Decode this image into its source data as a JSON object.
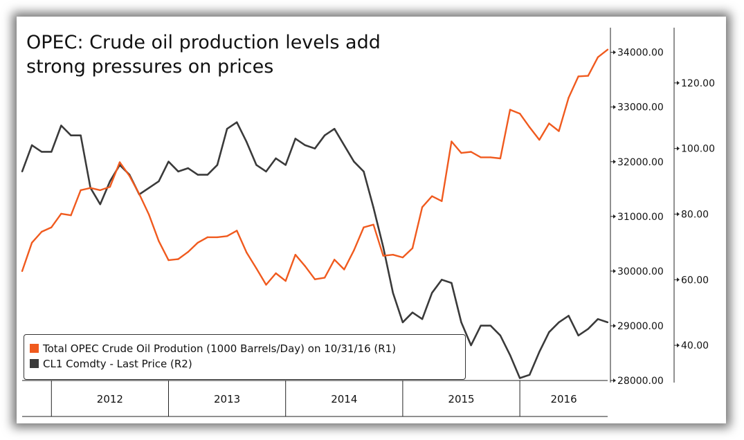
{
  "title_lines": [
    "OPEC: Crude oil production levels add",
    "strong pressures on prices"
  ],
  "colors": {
    "opec": "#f05a1e",
    "cl1": "#3a3a3a"
  },
  "legend": [
    {
      "label": "Total OPEC Crude Oil Prodution (1000 Barrels/Day) on 10/31/16 (R1)",
      "color": "#f05a1e"
    },
    {
      "label": "CL1 Comdty - Last Price (R2)",
      "color": "#3a3a3a"
    }
  ],
  "chart_data": {
    "type": "line",
    "title": "OPEC: Crude oil production levels add strong pressures on prices",
    "x_axis": {
      "labels": [
        "2012",
        "2013",
        "2014",
        "2015",
        "2016"
      ],
      "range": [
        "2011-10",
        "2016-10"
      ]
    },
    "y_axis_r1": {
      "range": [
        28000,
        34400
      ],
      "ticks": [
        28000,
        29000,
        30000,
        31000,
        32000,
        33000,
        34000
      ],
      "tick_labels": [
        "28000.00",
        "29000.00",
        "30000.00",
        "31000.00",
        "32000.00",
        "33000.00",
        "34000.00"
      ]
    },
    "y_axis_r2": {
      "range": [
        28,
        136
      ],
      "ticks": [
        40,
        60,
        80,
        100,
        120
      ],
      "tick_labels": [
        "40.00",
        "60.00",
        "80.00",
        "100.00",
        "120.00"
      ]
    },
    "series": [
      {
        "name": "Total OPEC Crude Oil Prodution (1000 Barrels/Day) on 10/31/16 (R1)",
        "axis": "R1",
        "x": [
          "2011-10",
          "2011-11",
          "2011-12",
          "2012-01",
          "2012-02",
          "2012-03",
          "2012-04",
          "2012-05",
          "2012-06",
          "2012-07",
          "2012-08",
          "2012-09",
          "2012-10",
          "2012-11",
          "2012-12",
          "2013-01",
          "2013-02",
          "2013-03",
          "2013-04",
          "2013-05",
          "2013-06",
          "2013-07",
          "2013-08",
          "2013-09",
          "2013-10",
          "2013-11",
          "2013-12",
          "2014-01",
          "2014-02",
          "2014-03",
          "2014-04",
          "2014-05",
          "2014-06",
          "2014-07",
          "2014-08",
          "2014-09",
          "2014-10",
          "2014-11",
          "2014-12",
          "2015-01",
          "2015-02",
          "2015-03",
          "2015-04",
          "2015-05",
          "2015-06",
          "2015-07",
          "2015-08",
          "2015-09",
          "2015-10",
          "2015-11",
          "2015-12",
          "2016-01",
          "2016-02",
          "2016-03",
          "2016-04",
          "2016-05",
          "2016-06",
          "2016-07",
          "2016-08",
          "2016-09",
          "2016-10"
        ],
        "values": [
          30000,
          30520,
          30720,
          30800,
          31050,
          31020,
          31480,
          31520,
          31480,
          31540,
          31990,
          31740,
          31410,
          31030,
          30550,
          30200,
          30220,
          30350,
          30520,
          30620,
          30620,
          30640,
          30740,
          30340,
          30050,
          29750,
          29960,
          29820,
          30300,
          30090,
          29850,
          29880,
          30210,
          30030,
          30380,
          30800,
          30850,
          30280,
          30300,
          30250,
          30420,
          31170,
          31370,
          31280,
          32370,
          32160,
          32180,
          32080,
          32080,
          32060,
          32950,
          32880,
          32630,
          32400,
          32700,
          32560,
          33170,
          33560,
          33570,
          33910,
          34050
        ]
      },
      {
        "name": "CL1 Comdty - Last Price (R2)",
        "axis": "R2",
        "x": [
          "2011-10",
          "2011-11",
          "2011-12",
          "2012-01",
          "2012-02",
          "2012-03",
          "2012-04",
          "2012-05",
          "2012-06",
          "2012-07",
          "2012-08",
          "2012-09",
          "2012-10",
          "2012-11",
          "2012-12",
          "2013-01",
          "2013-02",
          "2013-03",
          "2013-04",
          "2013-05",
          "2013-06",
          "2013-07",
          "2013-08",
          "2013-09",
          "2013-10",
          "2013-11",
          "2013-12",
          "2014-01",
          "2014-02",
          "2014-03",
          "2014-04",
          "2014-05",
          "2014-06",
          "2014-07",
          "2014-08",
          "2014-09",
          "2014-10",
          "2014-11",
          "2014-12",
          "2015-01",
          "2015-02",
          "2015-03",
          "2015-04",
          "2015-05",
          "2015-06",
          "2015-07",
          "2015-08",
          "2015-09",
          "2015-10",
          "2015-11",
          "2015-12",
          "2016-01",
          "2016-02",
          "2016-03",
          "2016-04",
          "2016-05",
          "2016-06",
          "2016-07",
          "2016-08",
          "2016-09",
          "2016-10"
        ],
        "values": [
          93,
          101,
          99,
          99,
          107,
          104,
          104,
          88,
          83,
          90,
          95,
          92,
          86,
          88,
          90,
          96,
          93,
          94,
          92,
          92,
          95,
          106,
          108,
          102,
          95,
          93,
          97,
          95,
          103,
          101,
          100,
          104,
          106,
          101,
          96,
          93,
          82,
          70,
          56,
          47,
          50,
          48,
          56,
          60,
          59,
          47,
          40,
          46,
          46,
          43,
          37,
          30,
          31,
          38,
          44,
          47,
          49,
          43,
          45,
          48,
          47
        ]
      }
    ],
    "grid": false,
    "legend_position": "bottom-left"
  }
}
